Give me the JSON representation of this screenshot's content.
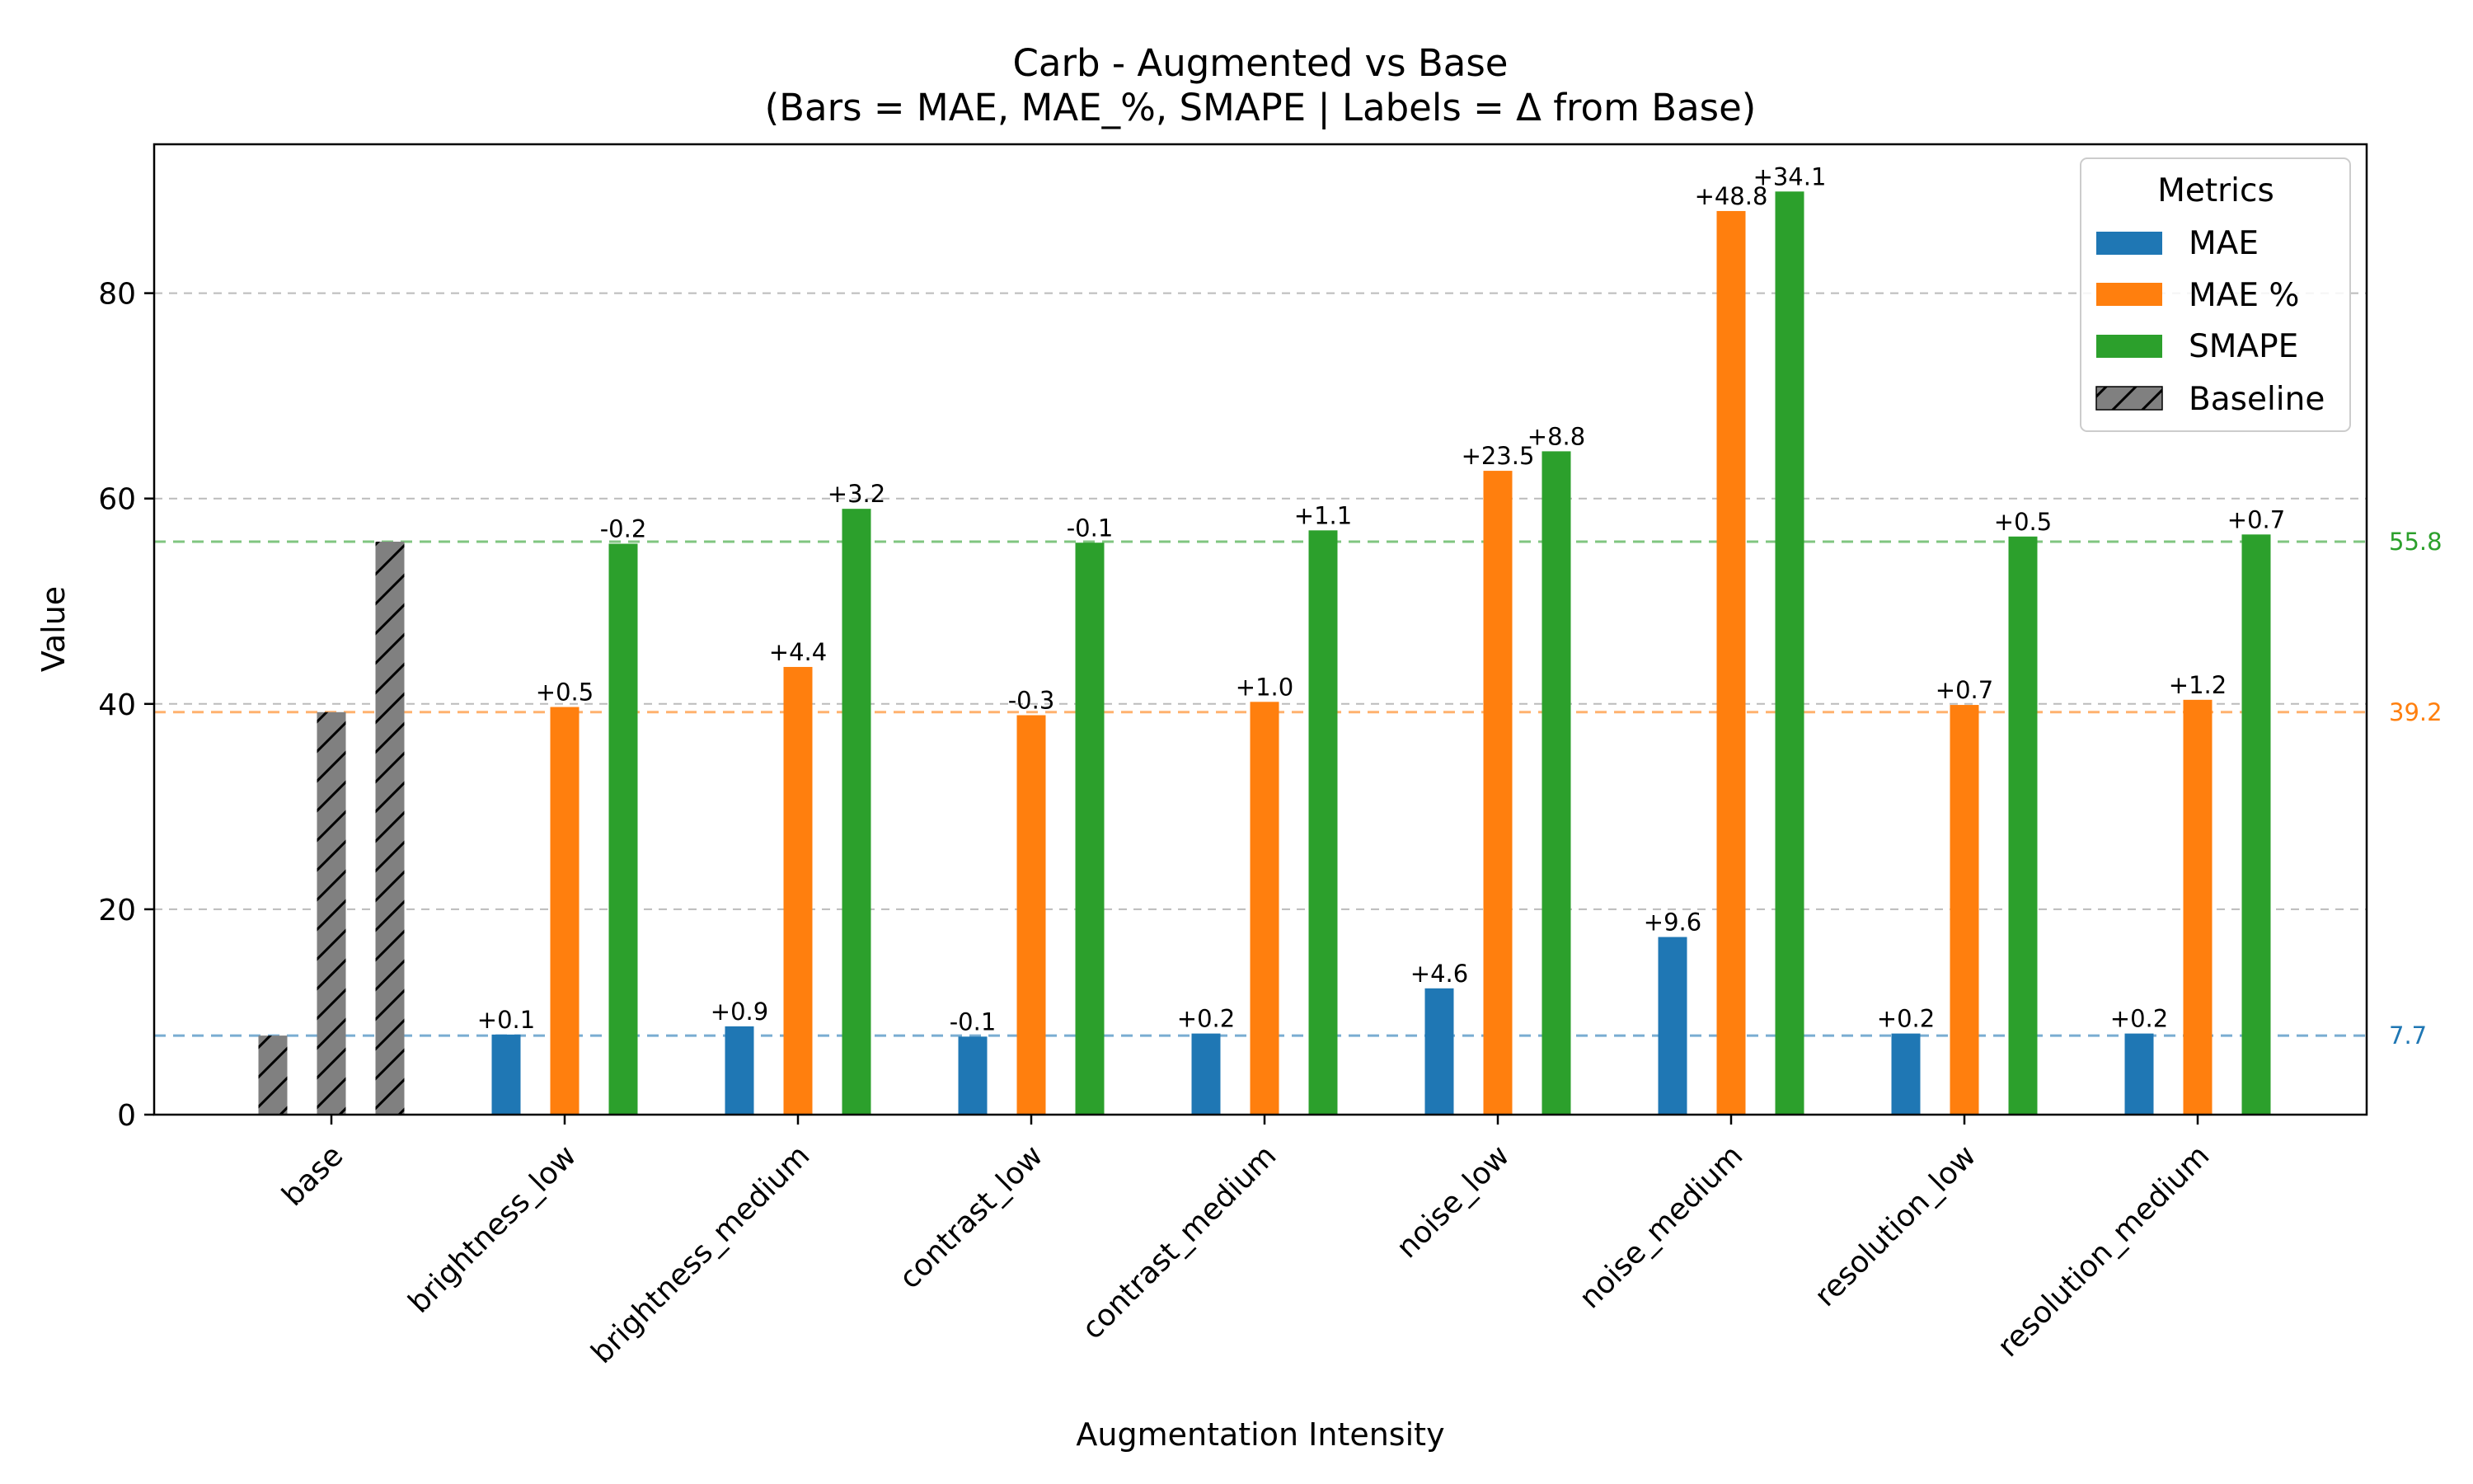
{
  "chart_data": {
    "type": "bar",
    "title": "Carb - Augmented vs Base",
    "subtitle": "(Bars = MAE, MAE_%, SMAPE | Labels = Δ from Base)",
    "xlabel": "Augmentation Intensity",
    "ylabel": "Value",
    "ylim": [
      0,
      94.5
    ],
    "yticks": [
      0,
      20,
      40,
      60,
      80
    ],
    "grid": "horizontal dashed",
    "legend_title": "Metrics",
    "legend_position": "top-right",
    "categories": [
      "base",
      "brightness_low",
      "brightness_medium",
      "contrast_low",
      "contrast_medium",
      "noise_low",
      "noise_medium",
      "resolution_low",
      "resolution_medium"
    ],
    "series": [
      {
        "name": "MAE",
        "color": "#1f77b4",
        "values": [
          null,
          7.8,
          8.6,
          7.6,
          7.9,
          12.3,
          17.3,
          7.9,
          7.9
        ],
        "labels": [
          "",
          "+0.1",
          "+0.9",
          "-0.1",
          "+0.2",
          "+4.6",
          "+9.6",
          "+0.2",
          "+0.2"
        ]
      },
      {
        "name": "MAE %",
        "color": "#ff7f0e",
        "values": [
          null,
          39.7,
          43.6,
          38.9,
          40.2,
          62.7,
          88.0,
          39.9,
          40.4
        ],
        "labels": [
          "",
          "+0.5",
          "+4.4",
          "-0.3",
          "+1.0",
          "+23.5",
          "+48.8",
          "+0.7",
          "+1.2"
        ]
      },
      {
        "name": "SMAPE",
        "color": "#2ca02c",
        "values": [
          null,
          55.6,
          59.0,
          55.7,
          56.9,
          64.6,
          89.9,
          56.3,
          56.5
        ],
        "labels": [
          "",
          "-0.2",
          "+3.2",
          "-0.1",
          "+1.1",
          "+8.8",
          "+34.1",
          "+0.5",
          "+0.7"
        ]
      }
    ],
    "baseline": {
      "name": "Baseline",
      "color": "#808080",
      "values": [
        7.7,
        39.2,
        55.8
      ]
    },
    "reference_lines": [
      {
        "metric": "MAE",
        "value": 7.7,
        "label": "7.7",
        "color": "#1f77b4"
      },
      {
        "metric": "MAE %",
        "value": 39.2,
        "label": "39.2",
        "color": "#ff7f0e"
      },
      {
        "metric": "SMAPE",
        "value": 55.8,
        "label": "55.8",
        "color": "#2ca02c"
      }
    ]
  }
}
